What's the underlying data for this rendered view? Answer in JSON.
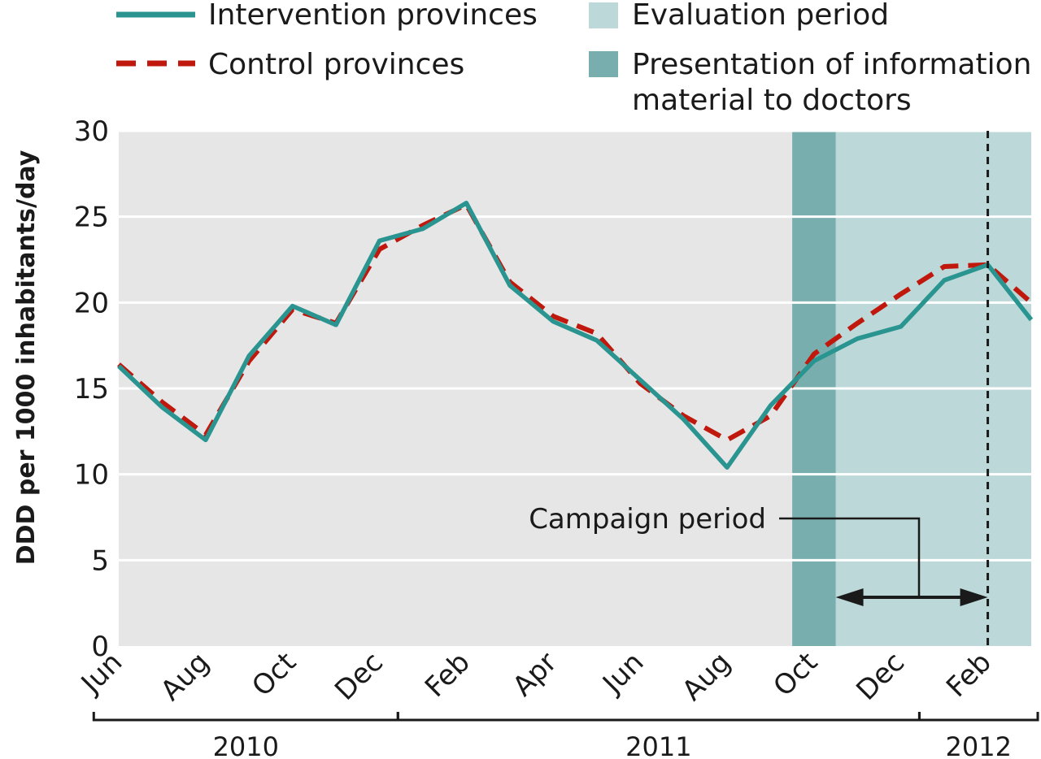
{
  "chart_data": {
    "type": "line",
    "title": "",
    "ylabel": "DDD per 1000 inhabitants/day",
    "ylim": [
      0,
      30
    ],
    "yticks": [
      0,
      5,
      10,
      15,
      20,
      25,
      30
    ],
    "x_months": [
      "Jun 2010",
      "Jul 2010",
      "Aug 2010",
      "Sep 2010",
      "Oct 2010",
      "Nov 2010",
      "Dec 2010",
      "Jan 2011",
      "Feb 2011",
      "Mar 2011",
      "Apr 2011",
      "May 2011",
      "Jun 2011",
      "Jul 2011",
      "Aug 2011",
      "Sep 2011",
      "Oct 2011",
      "Nov 2011",
      "Dec 2011",
      "Jan 2012",
      "Feb 2012",
      "Mar 2012"
    ],
    "xtick_labels": [
      {
        "month": "Jun 2010",
        "label": "Jun"
      },
      {
        "month": "Aug 2010",
        "label": "Aug"
      },
      {
        "month": "Oct 2010",
        "label": "Oct"
      },
      {
        "month": "Dec 2010",
        "label": "Dec"
      },
      {
        "month": "Feb 2011",
        "label": "Feb"
      },
      {
        "month": "Apr 2011",
        "label": "Apr"
      },
      {
        "month": "Jun 2011",
        "label": "Jun"
      },
      {
        "month": "Aug 2011",
        "label": "Aug"
      },
      {
        "month": "Oct 2011",
        "label": "Oct"
      },
      {
        "month": "Dec 2011",
        "label": "Dec"
      },
      {
        "month": "Feb 2012",
        "label": "Feb"
      }
    ],
    "year_groups": [
      {
        "label": "2010",
        "from": "Jun 2010",
        "to": "Dec 2010"
      },
      {
        "label": "2011",
        "from": "Jan 2011",
        "to": "Dec 2011"
      },
      {
        "label": "2012",
        "from": "Jan 2012",
        "to": "Mar 2012"
      }
    ],
    "series": [
      {
        "name": "Intervention provinces",
        "style": "solid",
        "color": "#2a9590",
        "values": [
          16.3,
          13.9,
          12.0,
          16.9,
          19.8,
          18.7,
          23.6,
          24.3,
          25.8,
          21.0,
          18.9,
          17.8,
          15.5,
          13.2,
          10.4,
          14.0,
          16.6,
          17.9,
          18.6,
          21.3,
          22.2,
          19.0
        ]
      },
      {
        "name": "Control provinces",
        "style": "dashed",
        "color": "#c0180c",
        "values": [
          16.4,
          14.2,
          12.3,
          16.6,
          19.6,
          18.8,
          23.1,
          24.5,
          25.7,
          21.2,
          19.2,
          18.2,
          15.3,
          13.4,
          12.0,
          13.4,
          17.0,
          18.8,
          20.5,
          22.1,
          22.2,
          20.0
        ]
      }
    ],
    "bands": [
      {
        "name": "Presentation of information material to doctors",
        "from": "Oct 2011",
        "to": "Oct 2011",
        "color": "#78aeae"
      },
      {
        "name": "Evaluation period",
        "from": "Oct 2011",
        "to": "Mar 2012",
        "color": "#bcd8d8"
      }
    ],
    "reference_line": {
      "month": "Feb 2012",
      "style": "dashed"
    },
    "annotation": {
      "text": "Campaign period",
      "from": "Nov 2011",
      "to": "Feb 2012"
    },
    "legend": {
      "placement": "top",
      "items": [
        {
          "label": "Intervention provinces",
          "kind": "solid-line"
        },
        {
          "label": "Control provinces",
          "kind": "dashed-line"
        },
        {
          "label": "Evaluation period",
          "kind": "light-band"
        },
        {
          "label_lines": [
            "Presentation of information",
            "material to doctors"
          ],
          "kind": "dark-band"
        }
      ]
    },
    "grid": true,
    "background": "#e6e6e6",
    "gridline_color": "#ffffff"
  }
}
